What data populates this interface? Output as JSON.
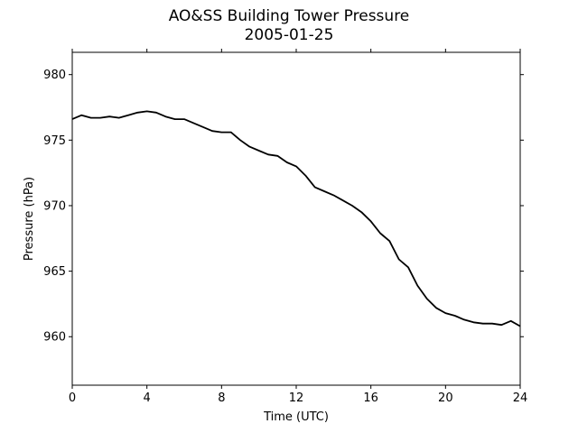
{
  "chart_data": {
    "type": "line",
    "title": "AO&SS Building Tower Pressure",
    "subtitle": "2005-01-25",
    "xlabel": "Time (UTC)",
    "ylabel": "Pressure (hPa)",
    "xlim": [
      0,
      24
    ],
    "ylim": [
      956.3,
      981.7
    ],
    "xticks": [
      0,
      4,
      8,
      12,
      16,
      20,
      24
    ],
    "yticks": [
      960,
      965,
      970,
      975,
      980
    ],
    "grid": false,
    "series": [
      {
        "color": "#000000",
        "x": [
          0,
          0.5,
          1,
          1.5,
          2,
          2.5,
          3,
          3.5,
          4,
          4.5,
          5,
          5.5,
          6,
          6.5,
          7,
          7.5,
          8,
          8.5,
          9,
          9.5,
          10,
          10.5,
          11,
          11.5,
          12,
          12.5,
          13,
          13.5,
          14,
          14.5,
          15,
          15.5,
          16,
          16.5,
          17,
          17.5,
          18,
          18.5,
          19,
          19.5,
          20,
          20.5,
          21,
          21.5,
          22,
          22.5,
          23,
          23.5,
          24
        ],
        "y": [
          976.6,
          976.9,
          976.7,
          976.7,
          976.8,
          976.7,
          976.9,
          977.1,
          977.2,
          977.1,
          976.8,
          976.6,
          976.6,
          976.3,
          976.0,
          975.7,
          975.6,
          975.6,
          975.0,
          974.5,
          974.2,
          973.9,
          973.8,
          973.3,
          973.0,
          972.3,
          971.4,
          971.1,
          970.8,
          970.4,
          970.0,
          969.5,
          968.8,
          967.9,
          967.3,
          965.9,
          965.3,
          963.9,
          962.9,
          962.2,
          961.8,
          961.6,
          961.3,
          961.1,
          961.0,
          961.0,
          960.9,
          961.2,
          960.8
        ]
      }
    ]
  }
}
